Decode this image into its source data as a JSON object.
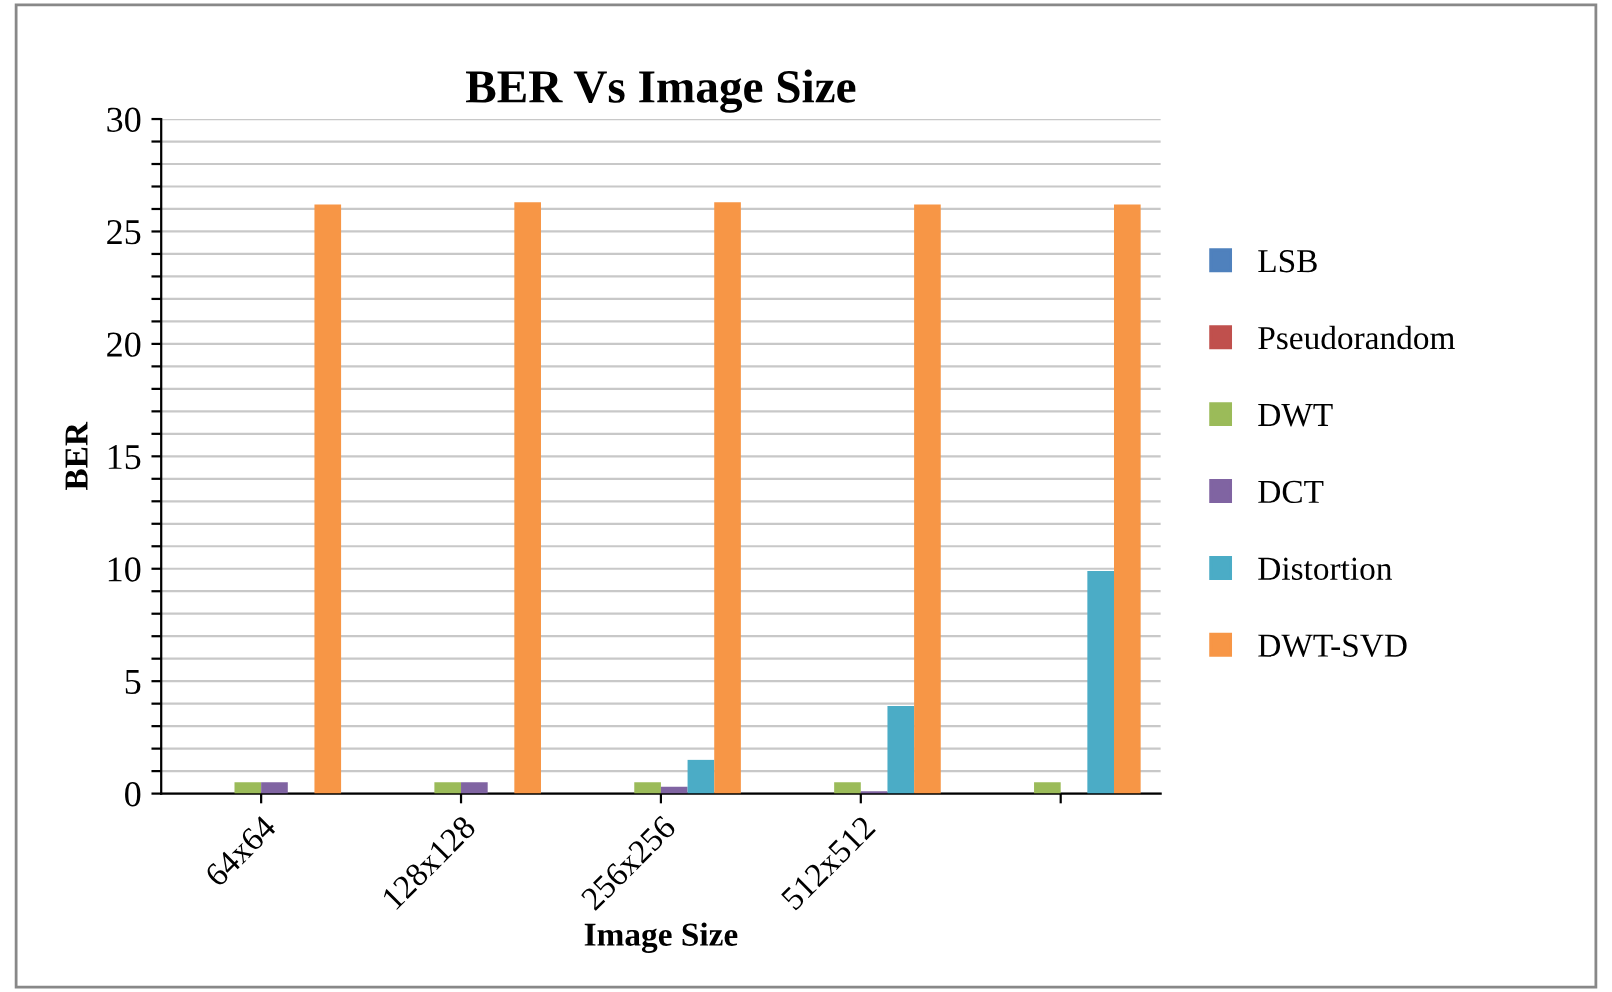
{
  "chart_data": {
    "type": "bar",
    "title": "BER Vs Image Size",
    "xlabel": "Image Size",
    "ylabel": "BER",
    "categories": [
      "64x64",
      "128x128",
      "256x256",
      "512x512",
      null
    ],
    "series": [
      {
        "name": "LSB",
        "color": "#4f81bd",
        "values": [
          0,
          0,
          0,
          0,
          0
        ]
      },
      {
        "name": "Pseudorandom",
        "color": "#c0504d",
        "values": [
          0,
          0,
          0,
          0,
          0
        ]
      },
      {
        "name": "DWT",
        "color": "#9bbb59",
        "values": [
          0.5,
          0.5,
          0.5,
          0.5,
          0.5
        ]
      },
      {
        "name": "DCT",
        "color": "#8064a2",
        "values": [
          0.5,
          0.5,
          0.3,
          0.1,
          0
        ]
      },
      {
        "name": "Distortion",
        "color": "#4bacc6",
        "values": [
          0,
          0,
          1.5,
          3.9,
          9.9
        ]
      },
      {
        "name": "DWT-SVD",
        "color": "#f79646",
        "values": [
          26.2,
          26.3,
          26.3,
          26.2,
          26.2
        ]
      }
    ],
    "ylim": [
      0,
      30
    ],
    "yticks": [
      0,
      {
        "value": 1,
        "label": null
      },
      {
        "value": 2,
        "label": null
      },
      {
        "value": 3,
        "label": null
      },
      {
        "value": 4,
        "label": null
      },
      5,
      {
        "value": 6,
        "label": null
      },
      {
        "value": 7,
        "label": null
      },
      {
        "value": 8,
        "label": null
      },
      {
        "value": 9,
        "label": null
      },
      10,
      {
        "value": 11,
        "label": null
      },
      {
        "value": 12,
        "label": null
      },
      {
        "value": 13,
        "label": null
      },
      {
        "value": 14,
        "label": null
      },
      15,
      {
        "value": 16,
        "label": null
      },
      {
        "value": 17,
        "label": null
      },
      {
        "value": 18,
        "label": null
      },
      {
        "value": 19,
        "label": null
      },
      20,
      {
        "value": 21,
        "label": null
      },
      {
        "value": 22,
        "label": null
      },
      {
        "value": 23,
        "label": null
      },
      {
        "value": 24,
        "label": null
      },
      25,
      {
        "value": 26,
        "label": null
      },
      {
        "value": 27,
        "label": null
      },
      {
        "value": 28,
        "label": null
      },
      {
        "value": 29,
        "label": null
      },
      30
    ],
    "grid": "y",
    "legend": "right"
  }
}
